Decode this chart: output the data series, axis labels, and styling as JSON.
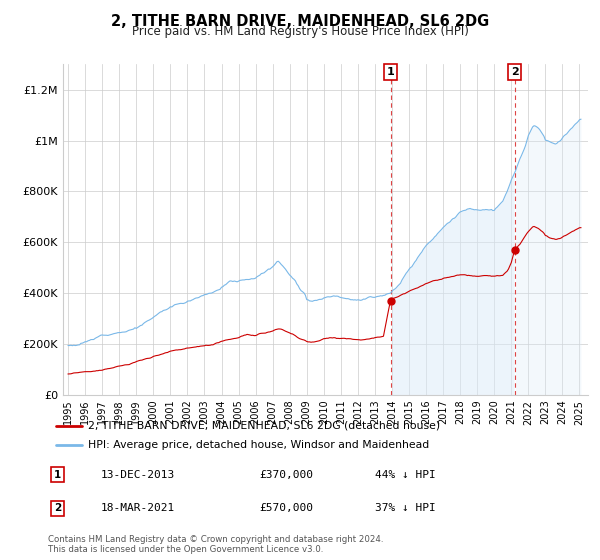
{
  "title": "2, TITHE BARN DRIVE, MAIDENHEAD, SL6 2DG",
  "subtitle": "Price paid vs. HM Land Registry's House Price Index (HPI)",
  "legend_line1": "2, TITHE BARN DRIVE, MAIDENHEAD, SL6 2DG (detached house)",
  "legend_line2": "HPI: Average price, detached house, Windsor and Maidenhead",
  "annotation1_label": "1",
  "annotation1_date": "13-DEC-2013",
  "annotation1_price": "£370,000",
  "annotation1_hpi": "44% ↓ HPI",
  "annotation1_year": 2013.917,
  "annotation1_value": 370000,
  "annotation2_label": "2",
  "annotation2_date": "18-MAR-2021",
  "annotation2_price": "£570,000",
  "annotation2_hpi": "37% ↓ HPI",
  "annotation2_year": 2021.208,
  "annotation2_value": 570000,
  "footnote": "Contains HM Land Registry data © Crown copyright and database right 2024.\nThis data is licensed under the Open Government Licence v3.0.",
  "hpi_color": "#7ab8e8",
  "price_color": "#cc0000",
  "hpi_shade_color": "#daeaf8",
  "background_color": "#ffffff",
  "grid_color": "#cccccc",
  "ylim": [
    0,
    1300000
  ],
  "yticks": [
    0,
    200000,
    400000,
    600000,
    800000,
    1000000,
    1200000
  ],
  "ytick_labels": [
    "£0",
    "£200K",
    "£400K",
    "£600K",
    "£800K",
    "£1M",
    "£1.2M"
  ]
}
